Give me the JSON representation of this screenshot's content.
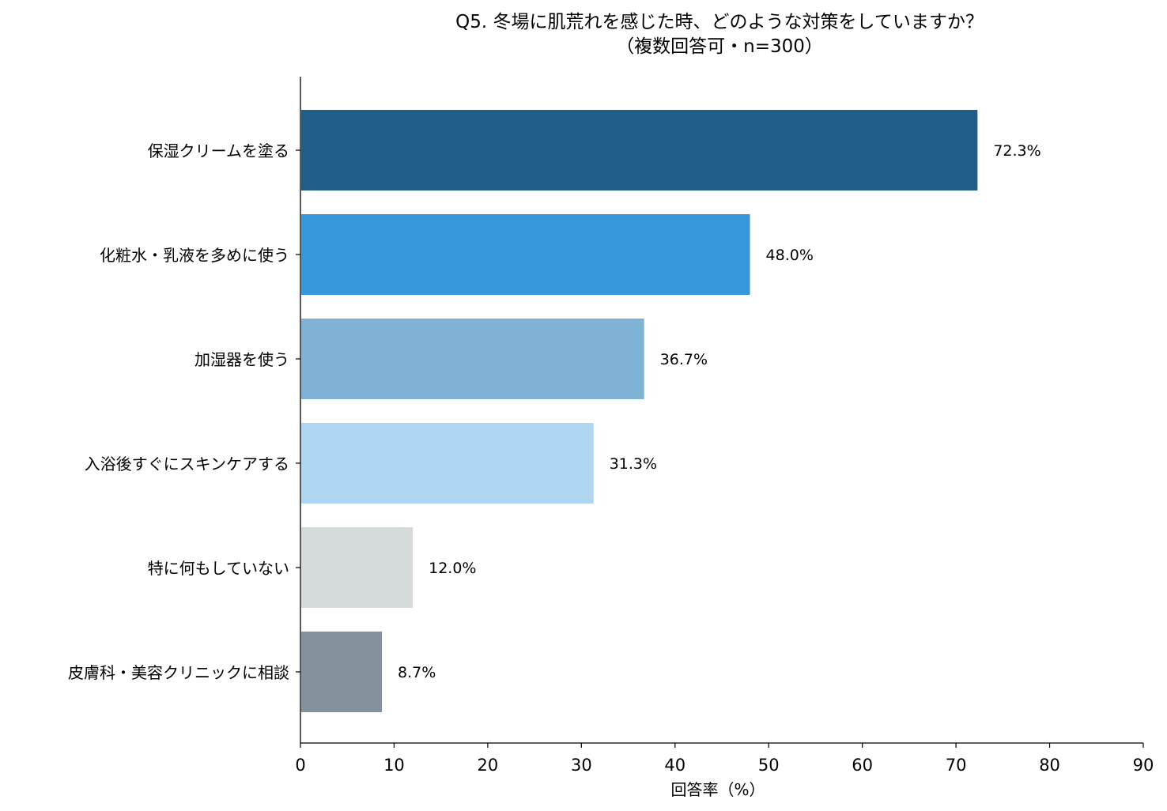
{
  "chart_data": {
    "type": "bar",
    "orientation": "horizontal",
    "title": "Q5. 冬場に肌荒れを感じた時、どのような対策をしていますか？",
    "subtitle": "（複数回答可・n=300）",
    "xlabel": "回答率（%）",
    "ylabel": "",
    "xlim": [
      0,
      90
    ],
    "xticks": [
      0,
      10,
      20,
      30,
      40,
      50,
      60,
      70,
      80,
      90
    ],
    "grid": false,
    "categories": [
      "保湿クリームを塗る",
      "化粧水・乳液を多めに使う",
      "加湿器を使う",
      "入浴後すぐにスキンケアする",
      "特に何もしていない",
      "皮膚科・美容クリニックに相談"
    ],
    "values": [
      72.3,
      48.0,
      36.7,
      31.3,
      12.0,
      8.7
    ],
    "data_labels": [
      "72.3%",
      "48.0%",
      "36.7%",
      "31.3%",
      "12.0%",
      "8.7%"
    ],
    "colors": [
      "#1f5f87",
      "#3698db",
      "#7fb3d5",
      "#aed6f1",
      "#d5dbdb",
      "#85929e"
    ]
  }
}
